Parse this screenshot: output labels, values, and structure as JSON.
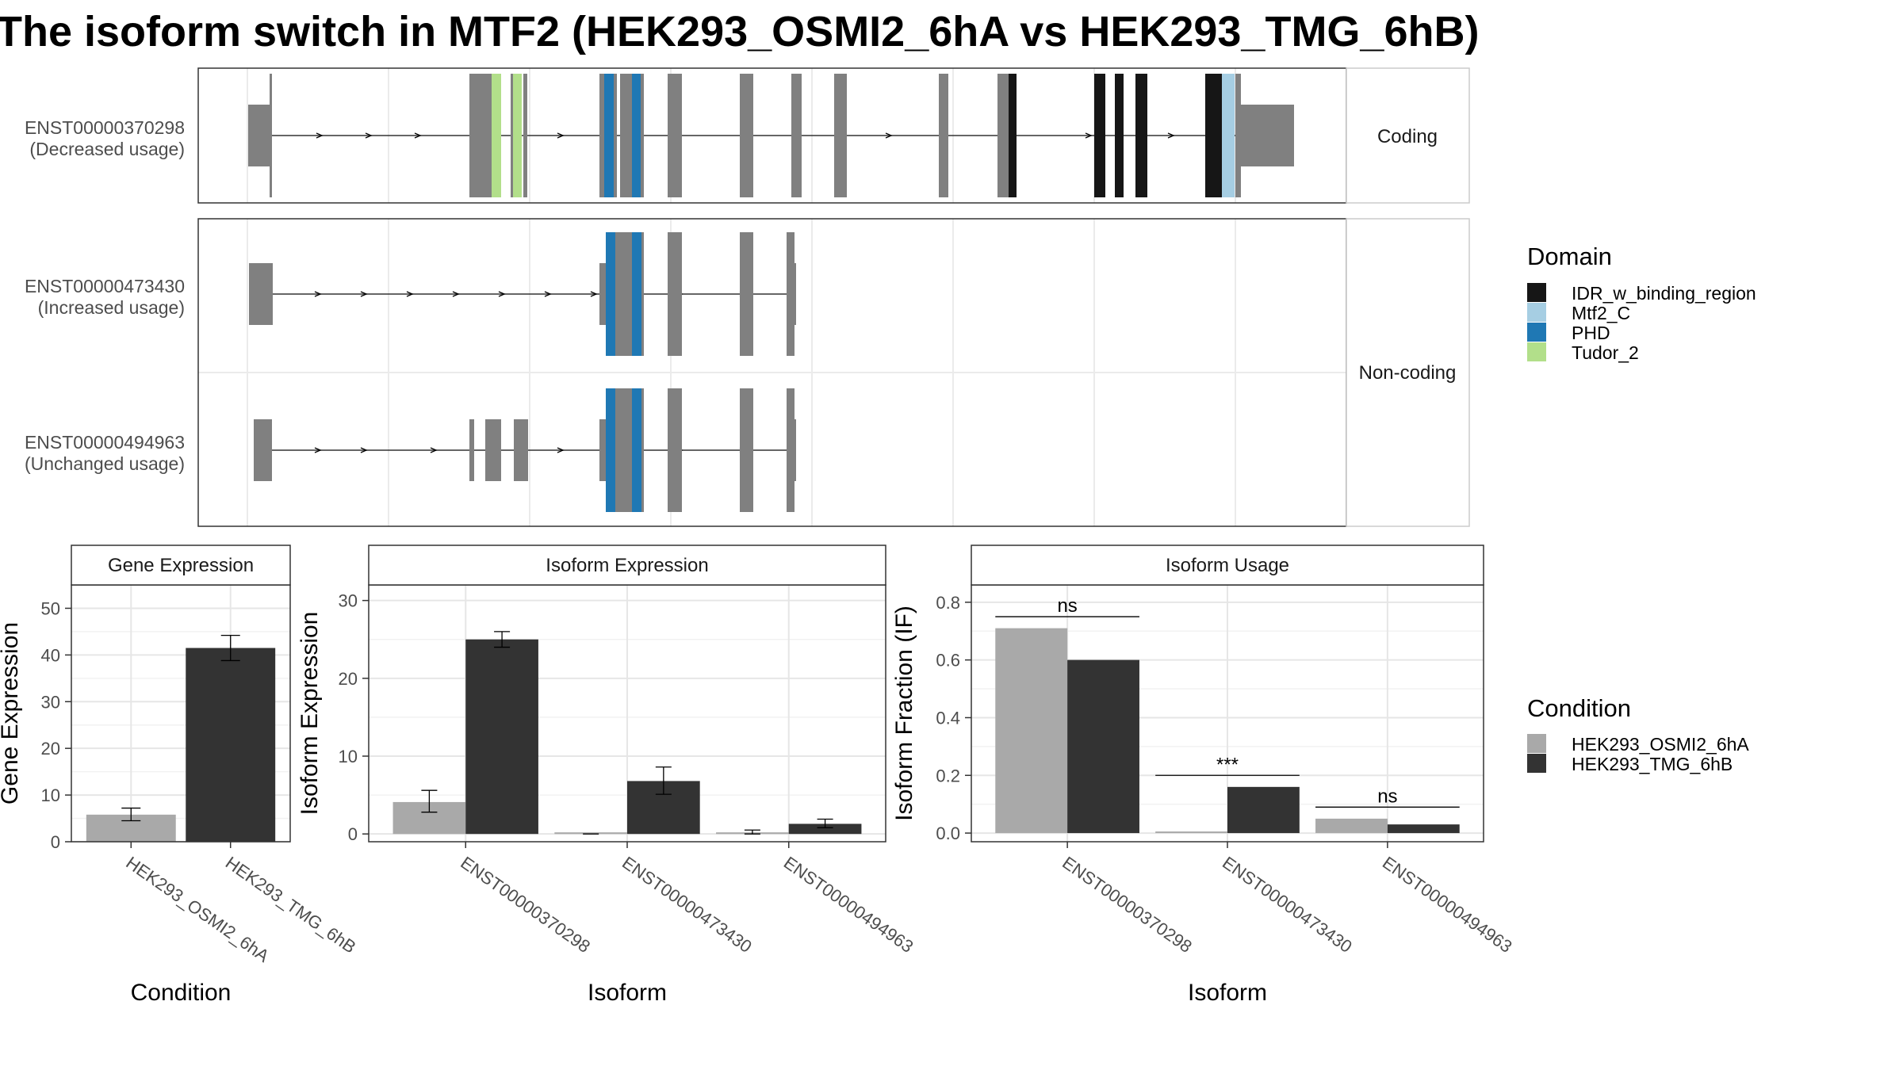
{
  "title": "The isoform switch in MTF2 (HEK293_OSMI2_6hA vs HEK293_TMG_6hB)",
  "colors": {
    "IDR_w_binding_region": "#161616",
    "Mtf2_C": "#a6cee3",
    "PHD": "#1f78b4",
    "Tudor_2": "#b2df8a",
    "exon": "#808080",
    "HEK293_OSMI2_6hA": "#a9a9a9",
    "HEK293_TMG_6hB": "#333333"
  },
  "structure": {
    "facets": [
      "Coding",
      "Non-coding"
    ],
    "transcripts": [
      {
        "id": "ENST00000370298",
        "usage": "(Decreased usage)",
        "facet": "Coding"
      },
      {
        "id": "ENST00000473430",
        "usage": "(Increased usage)",
        "facet": "Non-coding"
      },
      {
        "id": "ENST00000494963",
        "usage": "(Unchanged usage)",
        "facet": "Non-coding"
      }
    ]
  },
  "legend_domain": {
    "title": "Domain",
    "items": [
      "IDR_w_binding_region",
      "Mtf2_C",
      "PHD",
      "Tudor_2"
    ]
  },
  "legend_condition": {
    "title": "Condition",
    "items": [
      "HEK293_OSMI2_6hA",
      "HEK293_TMG_6hB"
    ]
  },
  "chart_data": [
    {
      "type": "bar",
      "title": "Gene Expression",
      "xlabel": "Condition",
      "ylabel": "Gene Expression",
      "categories": [
        "HEK293_OSMI2_6hA",
        "HEK293_TMG_6hB"
      ],
      "values": [
        5.8,
        41.5
      ],
      "error": [
        [
          4.5,
          7.2
        ],
        [
          38.8,
          44.2
        ]
      ],
      "ylim": [
        0,
        55
      ],
      "yticks": [
        0,
        10,
        20,
        30,
        40,
        50
      ],
      "grid": true
    },
    {
      "type": "bar",
      "title": "Isoform Expression",
      "xlabel": "Isoform",
      "ylabel": "Isoform Expression",
      "categories": [
        "ENST00000370298",
        "ENST00000473430",
        "ENST00000494963"
      ],
      "series": [
        {
          "name": "HEK293_OSMI2_6hA",
          "values": [
            4.1,
            0.0,
            0.2
          ],
          "error": [
            [
              2.8,
              5.6
            ],
            [
              0.0,
              0.0
            ],
            [
              0.0,
              0.5
            ]
          ]
        },
        {
          "name": "HEK293_TMG_6hB",
          "values": [
            25.0,
            6.8,
            1.3
          ],
          "error": [
            [
              24.0,
              26.0
            ],
            [
              5.1,
              8.6
            ],
            [
              0.8,
              1.9
            ]
          ]
        }
      ],
      "ylim": [
        -1,
        32
      ],
      "yticks": [
        0,
        10,
        20,
        30
      ],
      "grid": true
    },
    {
      "type": "bar",
      "title": "Isoform Usage",
      "xlabel": "Isoform",
      "ylabel": "Isoform Fraction (IF)",
      "categories": [
        "ENST00000370298",
        "ENST00000473430",
        "ENST00000494963"
      ],
      "series": [
        {
          "name": "HEK293_OSMI2_6hA",
          "values": [
            0.71,
            0.0,
            0.05
          ]
        },
        {
          "name": "HEK293_TMG_6hB",
          "values": [
            0.6,
            0.16,
            0.03
          ]
        }
      ],
      "significance": [
        "ns",
        "***",
        "ns"
      ],
      "ylim": [
        -0.03,
        0.86
      ],
      "yticks": [
        0.0,
        0.2,
        0.4,
        0.6,
        0.8
      ],
      "grid": true
    }
  ]
}
